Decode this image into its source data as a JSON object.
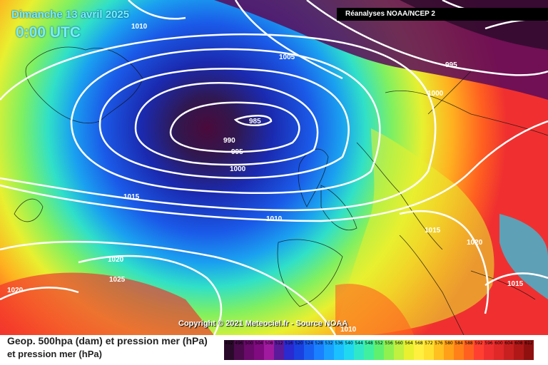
{
  "header": {
    "date": "Dimanche 13 avril 2025",
    "time": "0:00 UTC",
    "source": "Réanalyses NOAA/NCEP 2"
  },
  "copyright": "Copyright © 2021 Meteociel.fr - Source NOAA",
  "legend": {
    "title": "Geop. 500hpa (dam) et pression mer (hPa)",
    "subtitle": "et pression mer (hPa)",
    "scale_values": [
      "492",
      "496",
      "500",
      "504",
      "508",
      "512",
      "516",
      "520",
      "524",
      "528",
      "532",
      "536",
      "540",
      "544",
      "548",
      "552",
      "556",
      "560",
      "564",
      "568",
      "572",
      "576",
      "580",
      "584",
      "588",
      "592",
      "596",
      "600",
      "604",
      "608",
      "612"
    ],
    "scale_colors": [
      "#2a0a2a",
      "#4b0a4b",
      "#6a0a6a",
      "#800a80",
      "#a01aa0",
      "#5a1a9a",
      "#2a2ad0",
      "#1a40e0",
      "#1a60f0",
      "#1a80ff",
      "#1aa0ff",
      "#1ac0ff",
      "#20d8f0",
      "#30e8c8",
      "#40f0a0",
      "#60f070",
      "#90f050",
      "#c0f040",
      "#e8f030",
      "#fff040",
      "#ffe030",
      "#ffc020",
      "#ffa018",
      "#ff8018",
      "#ff6020",
      "#ff4030",
      "#f03030",
      "#e02828",
      "#c82020",
      "#b01818",
      "#901010"
    ]
  },
  "map": {
    "isobar_labels": [
      "1010",
      "1005",
      "995",
      "1000",
      "985",
      "990",
      "995",
      "1000",
      "1015",
      "1010",
      "1015",
      "1020",
      "1020",
      "1025",
      "1020",
      "1015",
      "1010"
    ]
  }
}
